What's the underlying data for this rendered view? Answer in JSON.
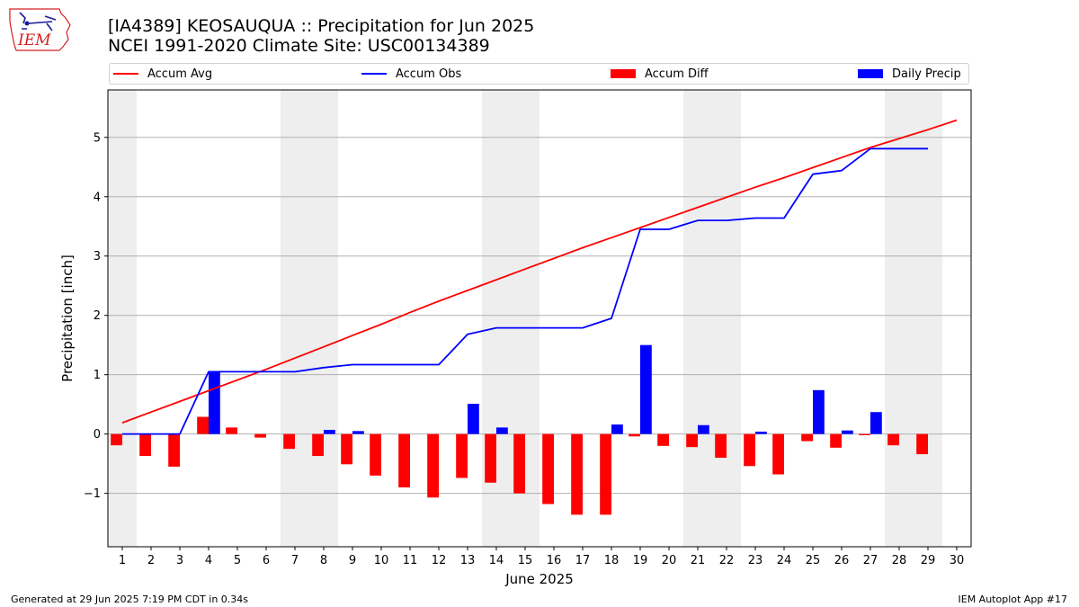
{
  "header": {
    "title_line1": "[IA4389] KEOSAUQUA :: Precipitation for Jun 2025",
    "title_line2": "NCEI 1991-2020 Climate Site: USC00134389"
  },
  "footer": {
    "generated": "Generated at 29 Jun 2025 7:19 PM CDT in 0.34s",
    "app": "IEM Autoplot App #17"
  },
  "logo": {
    "text": "IEM",
    "icon": "iem-iowa-logo-icon"
  },
  "legend": {
    "accum_avg": "Accum Avg",
    "accum_obs": "Accum Obs",
    "accum_diff": "Accum Diff",
    "daily_precip": "Daily Precip"
  },
  "colors": {
    "accum_avg": "#ff0000",
    "accum_obs": "#0000ff",
    "accum_diff": "#ff0000",
    "daily_precip": "#0000ff",
    "weekend_shade": "#eeeeee",
    "grid": "#b0b0b0"
  },
  "chart_data": {
    "type": "bar",
    "xlabel": "June 2025",
    "ylabel": "Precipitation [inch]",
    "xlim": [
      0.5,
      30.5
    ],
    "ylim": [
      -1.9,
      5.8
    ],
    "yticks": [
      -1,
      0,
      1,
      2,
      3,
      4,
      5
    ],
    "ytick_labels": [
      "−1",
      "0",
      "1",
      "2",
      "3",
      "4",
      "5"
    ],
    "x": [
      1,
      2,
      3,
      4,
      5,
      6,
      7,
      8,
      9,
      10,
      11,
      12,
      13,
      14,
      15,
      16,
      17,
      18,
      19,
      20,
      21,
      22,
      23,
      24,
      25,
      26,
      27,
      28,
      29,
      30
    ],
    "xtick_labels": [
      "1",
      "2",
      "3",
      "4",
      "5",
      "6",
      "7",
      "8",
      "9",
      "10",
      "11",
      "12",
      "13",
      "14",
      "15",
      "16",
      "17",
      "18",
      "19",
      "20",
      "21",
      "22",
      "23",
      "24",
      "25",
      "26",
      "27",
      "28",
      "29",
      "30"
    ],
    "grid": "horizontal",
    "legend_position": "top",
    "shaded_weekend_days": [
      1,
      7,
      8,
      14,
      15,
      21,
      22,
      28,
      29
    ],
    "series": [
      {
        "name": "Accum Avg",
        "type": "line",
        "x": [
          1,
          2,
          3,
          4,
          5,
          6,
          7,
          8,
          9,
          10,
          11,
          12,
          13,
          14,
          15,
          16,
          17,
          18,
          19,
          20,
          21,
          22,
          23,
          24,
          25,
          26,
          27,
          28,
          29,
          30
        ],
        "values": [
          0.19,
          0.37,
          0.55,
          0.73,
          0.91,
          1.09,
          1.28,
          1.47,
          1.66,
          1.85,
          2.05,
          2.24,
          2.42,
          2.6,
          2.78,
          2.96,
          3.14,
          3.31,
          3.48,
          3.65,
          3.82,
          3.99,
          4.16,
          4.32,
          4.49,
          4.66,
          4.83,
          4.98,
          5.13,
          5.29
        ]
      },
      {
        "name": "Accum Obs",
        "type": "line",
        "x": [
          1,
          2,
          3,
          4,
          5,
          6,
          7,
          8,
          9,
          10,
          11,
          12,
          13,
          14,
          15,
          16,
          17,
          18,
          19,
          20,
          21,
          22,
          23,
          24,
          25,
          26,
          27,
          28,
          29
        ],
        "values": [
          0.0,
          0.0,
          0.0,
          1.05,
          1.05,
          1.05,
          1.05,
          1.12,
          1.17,
          1.17,
          1.17,
          1.17,
          1.68,
          1.79,
          1.79,
          1.79,
          1.79,
          1.95,
          3.45,
          3.45,
          3.6,
          3.6,
          3.64,
          3.64,
          4.38,
          4.44,
          4.81,
          4.81,
          4.81
        ]
      },
      {
        "name": "Accum Diff",
        "type": "bar",
        "x": [
          1,
          2,
          3,
          4,
          5,
          6,
          7,
          8,
          9,
          10,
          11,
          12,
          13,
          14,
          15,
          16,
          17,
          18,
          19,
          20,
          21,
          22,
          23,
          24,
          25,
          26,
          27,
          28,
          29
        ],
        "values": [
          -0.19,
          -0.37,
          -0.55,
          0.29,
          0.11,
          -0.06,
          -0.25,
          -0.37,
          -0.51,
          -0.7,
          -0.9,
          -1.07,
          -0.74,
          -0.82,
          -1.0,
          -1.18,
          -1.36,
          -1.36,
          -0.04,
          -0.2,
          -0.22,
          -0.4,
          -0.54,
          -0.68,
          -0.12,
          -0.23,
          -0.02,
          -0.19,
          -0.34
        ]
      },
      {
        "name": "Daily Precip",
        "type": "bar",
        "x": [
          1,
          2,
          3,
          4,
          5,
          6,
          7,
          8,
          9,
          10,
          11,
          12,
          13,
          14,
          15,
          16,
          17,
          18,
          19,
          20,
          21,
          22,
          23,
          24,
          25,
          26,
          27,
          28,
          29
        ],
        "values": [
          0,
          0,
          0,
          1.05,
          0,
          0,
          0,
          0.07,
          0.05,
          0,
          0,
          0,
          0.51,
          0.11,
          0,
          0,
          0,
          0.16,
          1.5,
          0,
          0.15,
          0,
          0.04,
          0,
          0.74,
          0.06,
          0.37,
          0,
          0
        ]
      }
    ]
  }
}
